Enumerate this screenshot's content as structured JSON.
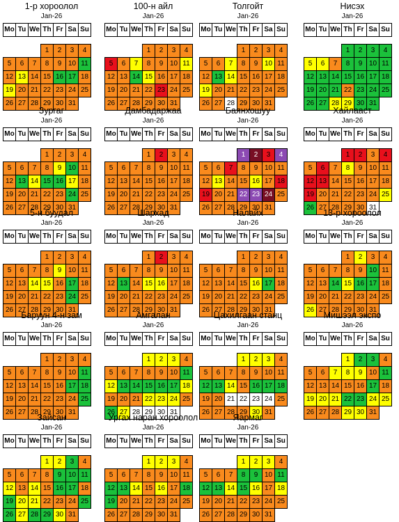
{
  "weekdays": [
    "Mo",
    "Tu",
    "We",
    "Th",
    "Fr",
    "Sa",
    "Su"
  ],
  "legend_colors": {
    "o": "#f98a1d",
    "y": "#ffff00",
    "g": "#1bc13b",
    "r": "#e8101c",
    "m": "#780e24",
    "p": "#8c4ab3",
    "w": "#ffffff"
  },
  "calendars": [
    {
      "title": "1-р хороолол",
      "month": "Jan-26",
      "colors": "oooooooooogoyooggoyooooooooooooo"
    },
    {
      "title": "100-н айл",
      "month": "Jan-26",
      "colors": "ooooroyoooyoogyoooooooroooooooooo"
    },
    {
      "title": "Толгойт",
      "month": "Jan-26",
      "colors": "ooooooyooyoogyooooyoooooooowooo"
    },
    {
      "title": "Нисэх",
      "month": "Jan-26",
      "colors": "ggggyyoggggggggggggggogggggyyggoo"
    },
    {
      "title": "Зургаг",
      "month": "Jan-26",
      "colors": "ooooooooygoogyggyoooooogoooooooo"
    },
    {
      "title": "Дамбадаржаа",
      "month": "Jan-26",
      "colors": "orooooooooooooooooooooooooooooooo"
    },
    {
      "title": "Баянхошуу",
      "month": "Jan-26",
      "colors": "pmrpooroooooyooyorrooppmoooooooo"
    },
    {
      "title": "Хайлааст",
      "month": "Jan-26",
      "colors": "rrororoyooorroooooroooooygoooowo"
    },
    {
      "title": "5-н буудал",
      "month": "Jan-26",
      "colors": "ooooooooyooooyyogoooooogoooooooo"
    },
    {
      "title": "Шархад",
      "month": "Jan-26",
      "colors": "oroooooooooogoyyooooooooooooooo"
    },
    {
      "title": "Налайх",
      "month": "Jan-26",
      "colors": "oooooooooooooooygooooooooooooooo"
    },
    {
      "title": "13-р хороолол",
      "month": "Jan-26",
      "colors": "oyooooooogooogyggooooooooyoooooo"
    },
    {
      "title": "Баруун 4-н зам",
      "month": "Jan-26",
      "colors": "oooooooooogoooooggoooooogoooooooo"
    },
    {
      "title": "Амгалан",
      "month": "Jan-26",
      "colors": "yyyooooooogygggggyoooyyyogywwwww"
    },
    {
      "title": "Цахилгаан станц",
      "month": "Jan-26",
      "colors": "yyyooooooooggyogggoowwwwoooooyoo"
    },
    {
      "title": "Мишээл экспо",
      "month": "Jan-26",
      "colors": "yggoooyyyogooooogoyyyggyyoooyyoo"
    },
    {
      "title": "Зайсан",
      "month": "Jan-26",
      "colors": "yygooooogggyoyoggogyyoooggyggyo"
    },
    {
      "title": "Ургах наран хороолол",
      "month": "Jan-26",
      "colors": "yyyooooooooggyoyoggooooooooooooo"
    },
    {
      "title": "Яармаг",
      "month": "Jan-26",
      "colors": "yyyooooggogggygyoyoooooooooooooo"
    }
  ]
}
